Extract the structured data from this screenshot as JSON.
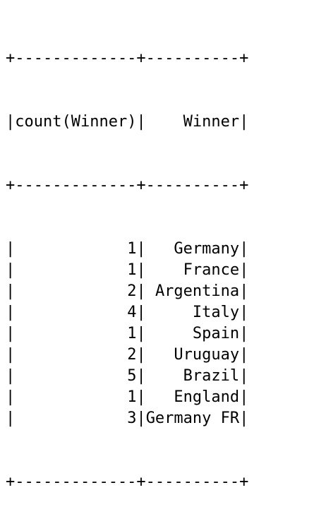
{
  "table": {
    "border_line": "+-------------+----------+",
    "columns": [
      "count(Winner)",
      "Winner"
    ],
    "rows": [
      {
        "count": "1",
        "winner": "Germany"
      },
      {
        "count": "1",
        "winner": "France"
      },
      {
        "count": "2",
        "winner": "Argentina"
      },
      {
        "count": "4",
        "winner": "Italy"
      },
      {
        "count": "1",
        "winner": "Spain"
      },
      {
        "count": "2",
        "winner": "Uruguay"
      },
      {
        "count": "5",
        "winner": "Brazil"
      },
      {
        "count": "1",
        "winner": "England"
      },
      {
        "count": "3",
        "winner": "Germany FR"
      }
    ]
  }
}
